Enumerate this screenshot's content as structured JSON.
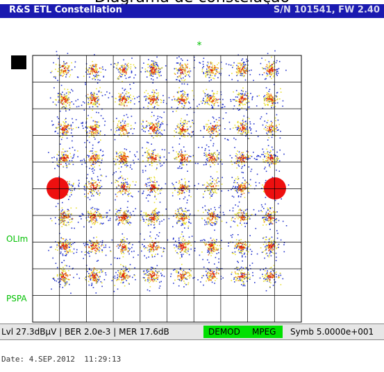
{
  "caption": "Diagrama de constelação",
  "header": {
    "title": "R&S ETL Constellation",
    "serial": "S/N 101541, FW 2.40"
  },
  "plot": {
    "star": "*",
    "labels": [
      "OLIm",
      "PSPA"
    ]
  },
  "status": {
    "measurements": "Lvl 27.3dBµV | BER 2.0e-3 | MER 17.6dB",
    "demod": "DEMOD",
    "mpeg": "MPEG",
    "symbol": "Symb 5.0000e+001"
  },
  "footer": {
    "date": "Date: 4.SEP.2012  11:29:13"
  }
}
